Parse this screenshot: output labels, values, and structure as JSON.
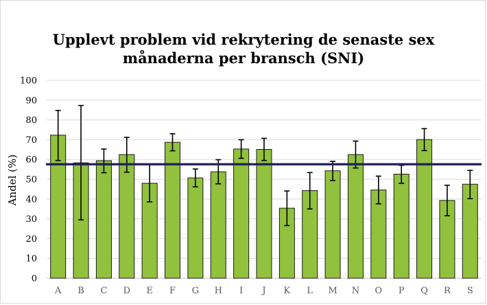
{
  "chart_data": {
    "type": "bar",
    "title_line1": "Upplevt problem vid rekrytering de senaste sex",
    "title_line2": "månaderna per bransch (SNI)",
    "xlabel": "",
    "ylabel": "Andel (%)",
    "ylim": [
      0,
      100
    ],
    "yticks": [
      "0",
      "10",
      "20",
      "30",
      "40",
      "50",
      "60",
      "70",
      "80",
      "90",
      "100"
    ],
    "categories": [
      "A",
      "B",
      "C",
      "D",
      "E",
      "F",
      "G",
      "H",
      "I",
      "J",
      "K",
      "L",
      "M",
      "N",
      "O",
      "P",
      "Q",
      "R",
      "S"
    ],
    "values": [
      72.3,
      58.3,
      59.4,
      62.5,
      48.0,
      68.7,
      50.7,
      53.8,
      65.3,
      65.1,
      35.4,
      44.3,
      54.3,
      62.5,
      44.6,
      52.6,
      70.1,
      39.3,
      47.5
    ],
    "error_low": [
      59.5,
      29.5,
      53.3,
      53.6,
      38.6,
      64.4,
      46.2,
      47.7,
      60.6,
      59.5,
      26.6,
      35.0,
      49.4,
      55.7,
      37.6,
      48.0,
      64.5,
      31.6,
      40.2
    ],
    "error_high": [
      84.8,
      87.3,
      65.3,
      71.2,
      57.5,
      73.0,
      55.2,
      59.9,
      70.0,
      70.7,
      44.1,
      53.4,
      59.1,
      69.3,
      51.6,
      57.1,
      75.6,
      47.0,
      54.5
    ],
    "reference_line": 57.6,
    "grid": true,
    "legend": "none",
    "colors": {
      "bar": "#92c13d",
      "bar_edge": "#1a1a1a",
      "reference": "#1f1d5c",
      "grid": "#d9d9d9"
    }
  }
}
